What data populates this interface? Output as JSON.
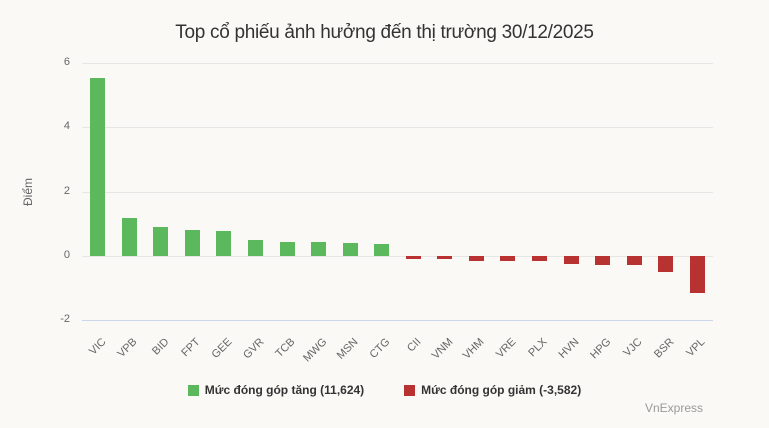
{
  "chart_data": {
    "type": "bar",
    "title": "Top cổ phiếu ảnh hưởng đến thị trường 30/12/2025",
    "xlabel": "",
    "ylabel": "Điểm",
    "ylim": [
      -2,
      6
    ],
    "yticks": [
      6,
      4,
      2,
      0,
      -2
    ],
    "grid": true,
    "legend_position": "bottom",
    "categories": [
      "VIC",
      "VPB",
      "BID",
      "FPT",
      "GEE",
      "GVR",
      "TCB",
      "MWG",
      "MSN",
      "CTG",
      "CII",
      "VNM",
      "VHM",
      "VRE",
      "PLX",
      "HVN",
      "HPG",
      "VJC",
      "BSR",
      "VPL"
    ],
    "values": [
      5.53,
      1.18,
      0.9,
      0.81,
      0.78,
      0.5,
      0.43,
      0.43,
      0.4,
      0.37,
      -0.09,
      -0.09,
      -0.15,
      -0.15,
      -0.17,
      -0.27,
      -0.3,
      -0.3,
      -0.5,
      -1.15
    ],
    "series": [
      {
        "name": "Mức đóng góp tăng (11,624)",
        "color": "#5cb85c",
        "categories": [
          "VIC",
          "VPB",
          "BID",
          "FPT",
          "GEE",
          "GVR",
          "TCB",
          "MWG",
          "MSN",
          "CTG"
        ],
        "values": [
          5.53,
          1.18,
          0.9,
          0.81,
          0.78,
          0.5,
          0.43,
          0.43,
          0.4,
          0.37
        ]
      },
      {
        "name": "Mức đóng góp giảm (-3,582)",
        "color": "#b83232",
        "categories": [
          "CII",
          "VNM",
          "VHM",
          "VRE",
          "PLX",
          "HVN",
          "HPG",
          "VJC",
          "BSR",
          "VPL"
        ],
        "values": [
          -0.09,
          -0.09,
          -0.15,
          -0.15,
          -0.17,
          -0.27,
          -0.3,
          -0.3,
          -0.5,
          -1.15
        ]
      }
    ]
  },
  "title": "Top cổ phiếu ảnh hưởng đến thị trường 30/12/2025",
  "y_axis_label": "Điểm",
  "legend": {
    "up_label": "Mức đóng góp tăng (11,624)",
    "down_label": "Mức đóng góp giảm (-3,582)",
    "up_color": "#5cb85c",
    "down_color": "#b83232"
  },
  "credit": "VnExpress"
}
